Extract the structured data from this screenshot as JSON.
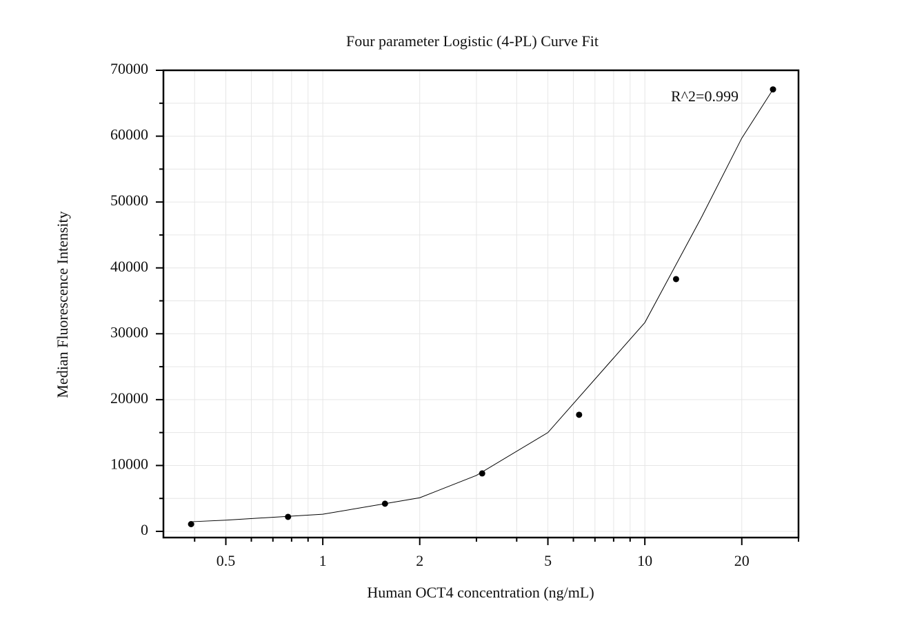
{
  "chart_data": {
    "type": "scatter",
    "title": "Four parameter Logistic (4-PL) Curve Fit",
    "x_label": "Human OCT4 concentration (ng/mL)",
    "y_label": "Median Fluorescence Intensity",
    "annotation": "R^2=0.999",
    "x": [
      0.39,
      0.78,
      1.56,
      3.125,
      6.25,
      12.5,
      25
    ],
    "values": [
      1100,
      2200,
      4200,
      8800,
      17700,
      38300,
      67100
    ],
    "color": "#000000",
    "fit_curve": {
      "x": [
        0.39,
        0.5,
        1,
        2,
        3,
        5,
        10,
        15,
        20,
        25
      ],
      "values": [
        1460,
        1700,
        2600,
        5100,
        8500,
        15000,
        31700,
        47700,
        59700,
        67100
      ]
    },
    "xlog": true,
    "xlim": [
      0.32,
      30
    ],
    "xticks": [
      0.5,
      1,
      2,
      5,
      10,
      20
    ],
    "xminor": [
      0.4,
      0.6,
      0.7,
      0.8,
      0.9,
      3,
      4,
      6,
      7,
      8,
      9,
      30
    ],
    "ylim": [
      -940,
      70000
    ],
    "yticks": [
      0,
      10000,
      20000,
      30000,
      40000,
      50000,
      60000,
      70000
    ],
    "yminor": [
      5000,
      15000,
      25000,
      35000,
      45000,
      55000,
      65000
    ],
    "grid": true
  }
}
